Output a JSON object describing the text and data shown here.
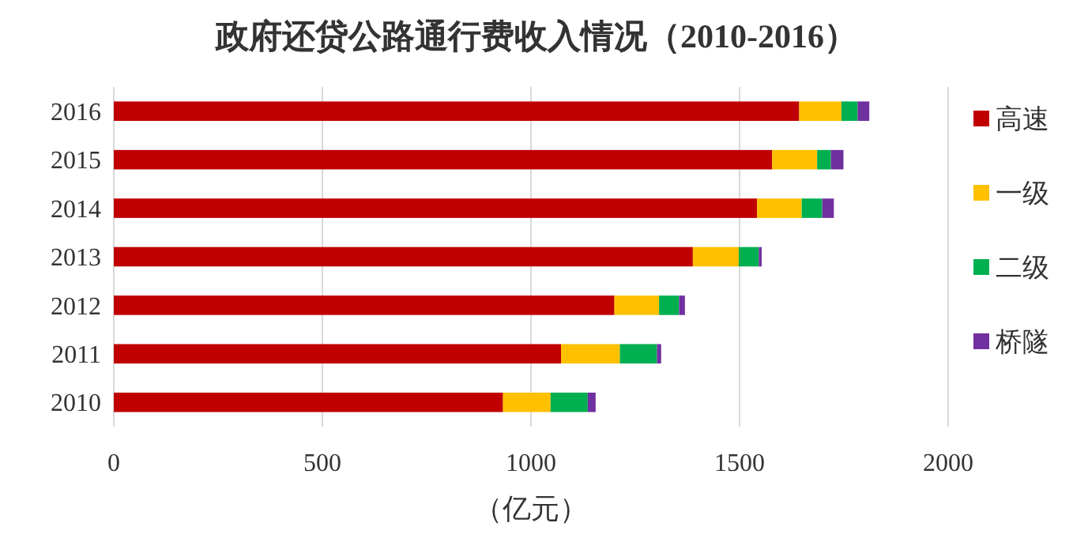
{
  "chart_data": {
    "type": "bar",
    "orientation": "horizontal",
    "stacked": true,
    "title": "政府还贷公路通行费收入情况（2010-2016）",
    "xlabel": "（亿元）",
    "categories": [
      "2016",
      "2015",
      "2014",
      "2013",
      "2012",
      "2011",
      "2010"
    ],
    "series": [
      {
        "name": "高速",
        "color": "#c00000",
        "values": [
          1643,
          1578,
          1542,
          1388,
          1200,
          1072,
          933
        ]
      },
      {
        "name": "一级",
        "color": "#ffc000",
        "values": [
          101,
          108,
          107,
          110,
          107,
          141,
          114
        ]
      },
      {
        "name": "二级",
        "color": "#00b050",
        "values": [
          39,
          33,
          49,
          48,
          48,
          89,
          89
        ]
      },
      {
        "name": "桥隧",
        "color": "#7030a0",
        "values": [
          28,
          30,
          28,
          7,
          14,
          10,
          19
        ]
      }
    ],
    "xlim": [
      0,
      2000
    ],
    "xticks": [
      0,
      500,
      1000,
      1500,
      2000
    ],
    "grid": "x",
    "legend": "right"
  }
}
